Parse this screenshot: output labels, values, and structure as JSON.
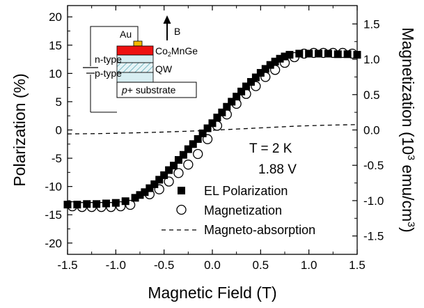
{
  "chart_data": {
    "type": "scatter",
    "xlabel": "Magnetic Field (T)",
    "ylabel": "Polarization (%)",
    "y2label": "Magnetization (10",
    "y2label_exp": "3",
    "y2label_units": " emu/cm",
    "y2label_units_exp": "3",
    "y2label_close": ")",
    "xlim": [
      -1.5,
      1.5
    ],
    "ylim": [
      -22,
      22
    ],
    "y2lim": [
      -1.76,
      1.76
    ],
    "x_ticks": [
      -1.5,
      -1.0,
      -0.5,
      0.0,
      0.5,
      1.0,
      1.5
    ],
    "x_tick_labels": [
      "-1.5",
      "-1.0",
      "-0.5",
      "0.0",
      "0.5",
      "1.0",
      "1.5"
    ],
    "y_ticks": [
      -20,
      -15,
      -10,
      -5,
      0,
      5,
      10,
      15,
      20
    ],
    "y_tick_labels": [
      "-20",
      "-15",
      "-10",
      "-5",
      "0",
      "5",
      "10",
      "15",
      "20"
    ],
    "y2_ticks": [
      -1.5,
      -1.0,
      -0.5,
      0.0,
      0.5,
      1.0,
      1.5
    ],
    "y2_tick_labels": [
      "-1.5",
      "-1.0",
      "-0.5",
      "0.0",
      "0.5",
      "1.0",
      "1.5"
    ],
    "annotations": [
      "T = 2 K",
      "1.88 V"
    ],
    "legend_position": "bottom-right",
    "series": [
      {
        "name": "EL Polarization",
        "marker": "filled-square",
        "axis": "left",
        "x": [
          -1.5,
          -1.4,
          -1.3,
          -1.2,
          -1.1,
          -1.0,
          -0.9,
          -0.8,
          -0.75,
          -0.7,
          -0.65,
          -0.6,
          -0.55,
          -0.5,
          -0.45,
          -0.4,
          -0.35,
          -0.3,
          -0.25,
          -0.2,
          -0.15,
          -0.1,
          -0.05,
          0.0,
          0.05,
          0.1,
          0.15,
          0.2,
          0.25,
          0.3,
          0.35,
          0.4,
          0.45,
          0.5,
          0.55,
          0.6,
          0.65,
          0.7,
          0.75,
          0.8,
          0.9,
          1.0,
          1.1,
          1.2,
          1.3,
          1.4,
          1.5
        ],
        "y": [
          -13.2,
          -13.2,
          -13.1,
          -13.1,
          -13.0,
          -12.9,
          -12.6,
          -12.0,
          -11.5,
          -11.0,
          -10.3,
          -9.6,
          -8.8,
          -8.0,
          -7.1,
          -6.3,
          -5.3,
          -4.4,
          -3.4,
          -2.5,
          -1.6,
          -0.6,
          0.3,
          1.2,
          2.2,
          3.1,
          4.1,
          5.0,
          5.9,
          6.8,
          7.7,
          8.5,
          9.3,
          10.1,
          10.8,
          11.5,
          12.1,
          12.6,
          13.0,
          13.3,
          13.5,
          13.5,
          13.5,
          13.5,
          13.4,
          13.4,
          13.3
        ]
      },
      {
        "name": "Magnetization",
        "marker": "open-circle",
        "axis": "right",
        "x": [
          -1.45,
          -1.35,
          -1.25,
          -1.15,
          -1.05,
          -0.95,
          -0.85,
          -0.65,
          -0.55,
          -0.45,
          -0.35,
          -0.25,
          -0.15,
          -0.05,
          0.05,
          0.15,
          0.25,
          0.35,
          0.45,
          0.55,
          0.65,
          0.75,
          0.85,
          0.95,
          1.05,
          1.15,
          1.25,
          1.35,
          1.45
        ],
        "y": [
          -1.08,
          -1.09,
          -1.09,
          -1.09,
          -1.09,
          -1.08,
          -1.06,
          -0.91,
          -0.84,
          -0.73,
          -0.61,
          -0.49,
          -0.34,
          -0.13,
          0.06,
          0.22,
          0.37,
          0.51,
          0.62,
          0.75,
          0.85,
          0.95,
          1.03,
          1.08,
          1.09,
          1.09,
          1.09,
          1.09,
          1.08
        ]
      },
      {
        "name": "Magneto-absorption",
        "marker": "dashed-line",
        "axis": "left",
        "x": [
          -1.5,
          -1.2,
          -0.9,
          -0.6,
          -0.3,
          0.0,
          0.3,
          0.6,
          0.9,
          1.2,
          1.5
        ],
        "y": [
          -0.7,
          -0.65,
          -0.55,
          -0.42,
          -0.25,
          -0.05,
          0.2,
          0.45,
          0.7,
          0.85,
          0.95
        ]
      }
    ]
  },
  "inset": {
    "labels": {
      "au": "Au",
      "b": "B",
      "n_type": "n-type",
      "p_type": "p-type",
      "co2mnge_prefix": "Co",
      "co2mnge_sub": "2",
      "co2mnge_suffix": "MnGe",
      "qw": "QW",
      "substrate_italic": "p",
      "substrate_rest": "+ substrate"
    },
    "colors": {
      "au_contact": "#f5b800",
      "co2mnge_layer": "#ee1111",
      "n_layer": "#d8eef2",
      "qw_hatch": "#7ab8c4",
      "p_layer": "#d8eef2"
    }
  }
}
